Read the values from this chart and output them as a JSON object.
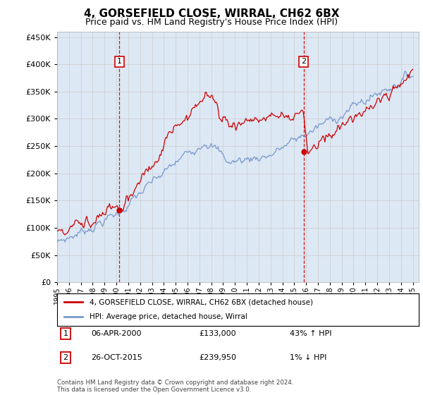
{
  "title": "4, GORSEFIELD CLOSE, WIRRAL, CH62 6BX",
  "subtitle": "Price paid vs. HM Land Registry's House Price Index (HPI)",
  "legend_entry1": "4, GORSEFIELD CLOSE, WIRRAL, CH62 6BX (detached house)",
  "legend_entry2": "HPI: Average price, detached house, Wirral",
  "annotation1_label": "1",
  "annotation1_date": "06-APR-2000",
  "annotation1_price": 133000,
  "annotation1_pct": "43% ↑ HPI",
  "annotation2_label": "2",
  "annotation2_date": "26-OCT-2015",
  "annotation2_price": 239950,
  "annotation2_pct": "1% ↓ HPI",
  "footer": "Contains HM Land Registry data © Crown copyright and database right 2024.\nThis data is licensed under the Open Government Licence v3.0.",
  "ylim_min": 0,
  "ylim_max": 460000,
  "xlim_min": 1995,
  "xlim_max": 2025.5,
  "background_color": "#dde8f5",
  "fig_bg_color": "#ffffff",
  "red_color": "#cc0000",
  "blue_color": "#7799cc",
  "vline_color": "#cc0000",
  "grid_color": "#cccccc",
  "sale1_year": 2000.25,
  "sale1_val": 133000,
  "sale2_year": 2015.79,
  "sale2_val": 239950
}
